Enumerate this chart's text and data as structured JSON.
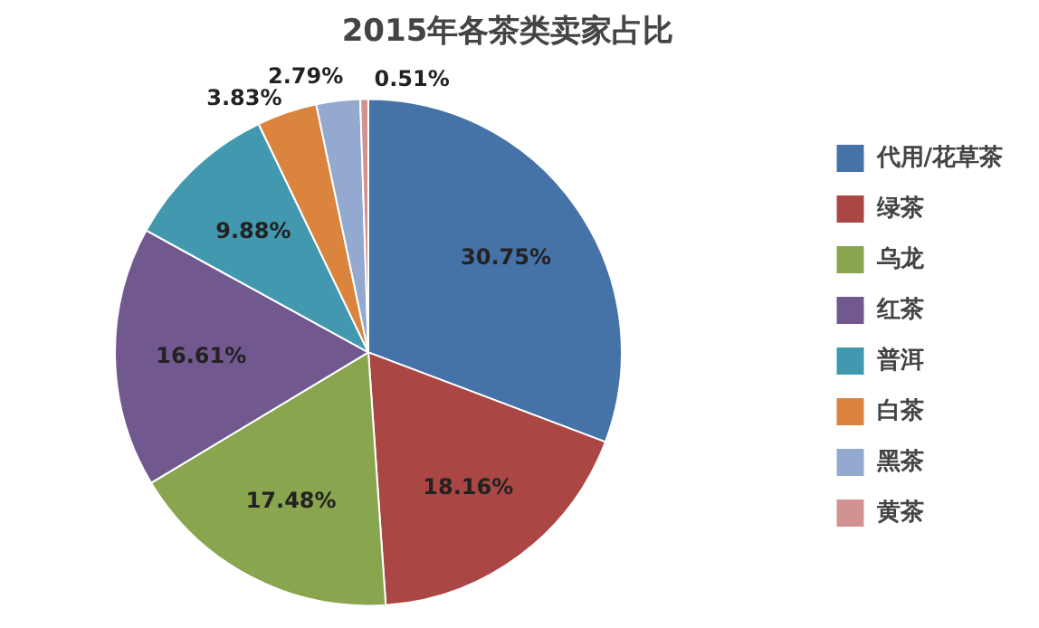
{
  "chart_data": {
    "type": "pie",
    "title": "2015年各茶类卖家占比",
    "categories": [
      "代用/花草茶",
      "绿茶",
      "乌龙",
      "红茶",
      "普洱",
      "白茶",
      "黑茶",
      "黄茶"
    ],
    "values": [
      30.75,
      18.16,
      17.48,
      16.61,
      9.88,
      3.83,
      2.79,
      0.51
    ],
    "value_labels": [
      "30.75%",
      "18.16%",
      "17.48%",
      "16.61%",
      "9.88%",
      "3.83%",
      "2.79%",
      "0.51%"
    ],
    "colors": [
      "#4572a7",
      "#aa4643",
      "#89a54e",
      "#71588f",
      "#4198af",
      "#db843d",
      "#93a9cf",
      "#d19392"
    ],
    "legend": "right"
  }
}
